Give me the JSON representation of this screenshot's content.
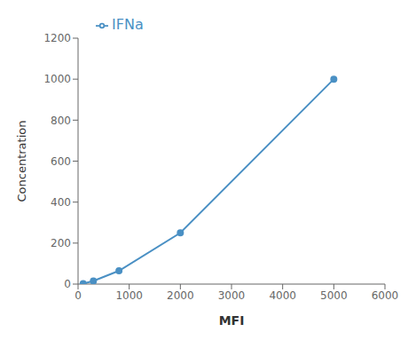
{
  "chart_data": {
    "type": "line",
    "x": [
      100,
      300,
      800,
      2000,
      5000
    ],
    "series": [
      {
        "name": "IFNa",
        "color": "#4A90C4",
        "marker": "circle",
        "values": [
          2,
          15,
          65,
          250,
          1000
        ]
      }
    ],
    "xlabel": "MFI",
    "ylabel": "Concentration",
    "xlim": [
      0,
      6000
    ],
    "ylim": [
      0,
      1200
    ],
    "xticks": [
      0,
      1000,
      2000,
      3000,
      4000,
      5000,
      6000
    ],
    "yticks": [
      0,
      200,
      400,
      600,
      800,
      1000,
      1200
    ],
    "grid": false,
    "legend": "upper left"
  }
}
